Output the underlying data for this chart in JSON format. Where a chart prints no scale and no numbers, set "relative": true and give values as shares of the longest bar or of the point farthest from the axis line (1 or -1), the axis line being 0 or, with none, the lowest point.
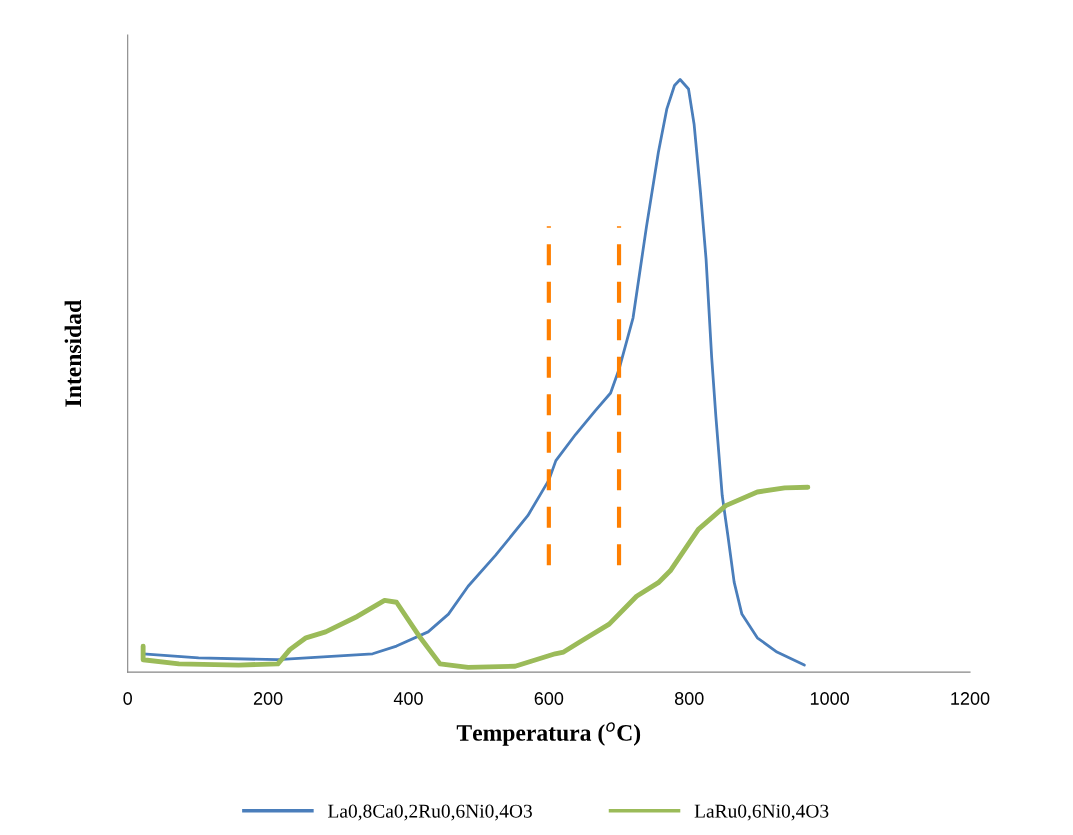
{
  "chart_data": {
    "type": "line",
    "xlabel": "Temperatura ($^{o}$C)",
    "ylabel": "Intensidad",
    "relative": true,
    "tick_labels": "x",
    "grid": false,
    "legend": "bottom",
    "line_style": "solid",
    "marker": "none",
    "xlim": [
      0,
      1200
    ],
    "xticks": [
      0,
      200,
      400,
      600,
      800,
      1000,
      1200
    ],
    "series": [
      {
        "name": "La0,8Ca0,2Ru0,6Ni0,4O3",
        "color": "#4a7ebb",
        "x": [
          22,
          101,
          214,
          349,
          383,
          428,
          457,
          485,
          524,
          570,
          600,
          610,
          638,
          666,
          688,
          700,
          720,
          739,
          756,
          768,
          779,
          787,
          799,
          807,
          816,
          824,
          832,
          838,
          847,
          855,
          864,
          875,
          897,
          925,
          964
        ],
        "values": [
          0.031,
          0.024,
          0.021,
          0.031,
          0.044,
          0.068,
          0.098,
          0.145,
          0.197,
          0.264,
          0.324,
          0.357,
          0.401,
          0.441,
          0.471,
          0.511,
          0.598,
          0.751,
          0.877,
          0.95,
          0.99,
          1.0,
          0.984,
          0.924,
          0.81,
          0.697,
          0.531,
          0.431,
          0.298,
          0.231,
          0.152,
          0.098,
          0.058,
          0.034,
          0.012
        ]
      },
      {
        "name": "LaRu0,6Ni0,4O3",
        "color": "#9bbb59",
        "x": [
          22,
          22,
          73,
          158,
          214,
          231,
          254,
          282,
          327,
          366,
          383,
          417,
          445,
          485,
          552,
          609,
          621,
          644,
          686,
          725,
          756,
          773,
          813,
          852,
          897,
          936,
          969
        ],
        "values": [
          0.044,
          0.021,
          0.014,
          0.012,
          0.014,
          0.038,
          0.058,
          0.068,
          0.094,
          0.121,
          0.118,
          0.058,
          0.014,
          0.008,
          0.01,
          0.031,
          0.034,
          0.051,
          0.081,
          0.128,
          0.151,
          0.171,
          0.241,
          0.281,
          0.304,
          0.311,
          0.312
        ]
      }
    ],
    "ref_lines": [
      {
        "axis": "x",
        "value": 600,
        "color": "#ff7f00",
        "line_style": "dashed"
      },
      {
        "axis": "x",
        "value": 700,
        "color": "#ff7f00",
        "line_style": "dashed"
      }
    ]
  }
}
